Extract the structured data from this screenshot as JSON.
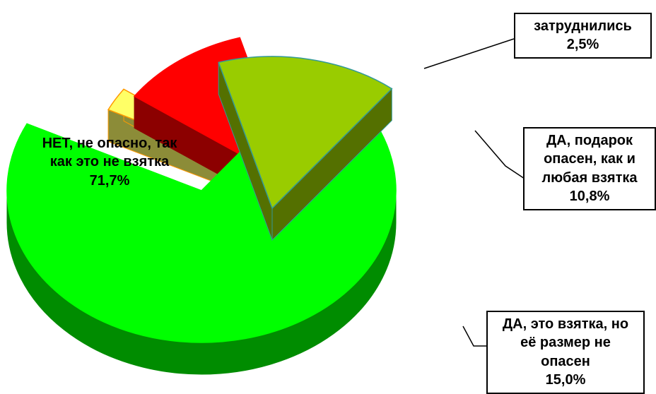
{
  "chart_data": {
    "type": "pie",
    "categories": [
      "НЕТ, не опасно, так как это не взятка",
      "затруднились",
      "ДА, подарок опасен, как и любая взятка",
      "ДА, это взятка, но её размер не опасен"
    ],
    "values": [
      71.7,
      2.5,
      10.8,
      15.0
    ],
    "value_labels": [
      "71,7%",
      "2,5%",
      "10,8%",
      "15,0%"
    ],
    "colors": [
      "#00ff00",
      "#ffff66",
      "#ff0000",
      "#99cc00"
    ]
  }
}
